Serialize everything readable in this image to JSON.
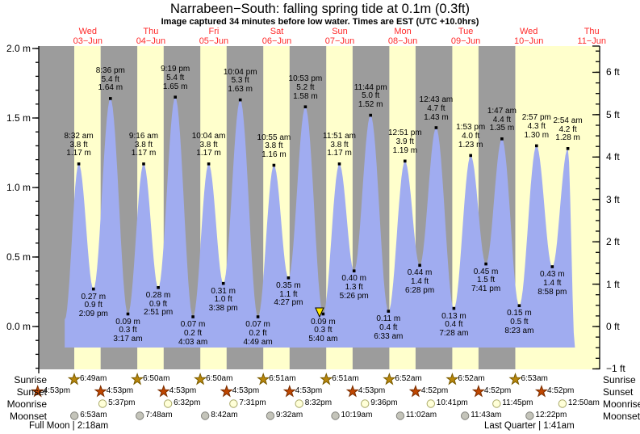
{
  "title": "Narrabeen−South: falling  spring tide at 0.1m (0.3ft)",
  "subtitle": "Image captured 34 minutes before low water. Times are EST (UTC +10.0hrs)",
  "colors": {
    "night_band": "#9C9C9C",
    "day_band": "#FFFFCC",
    "tide_fill": "#A0ACF0",
    "date_label_red": "#FF2A2A",
    "current_marker_yellow": "#FFE800",
    "sunrise_star": "#B8860B",
    "sunset_star": "#BF4600",
    "moonrise_circle": "#FFFFD8",
    "moonrise_circle_edge": "#A8A868",
    "moonset_circle": "#C4C4BA",
    "moonset_circle_edge": "#80807A"
  },
  "chart_data": {
    "type": "area",
    "title": "Narrabeen−South: falling  spring tide at 0.1m (0.3ft)",
    "x_axis_days": [
      {
        "weekday": "Wed",
        "date": "03−Jun"
      },
      {
        "weekday": "Thu",
        "date": "04−Jun"
      },
      {
        "weekday": "Fri",
        "date": "05−Jun"
      },
      {
        "weekday": "Sat",
        "date": "06−Jun"
      },
      {
        "weekday": "Sun",
        "date": "07−Jun"
      },
      {
        "weekday": "Mon",
        "date": "08−Jun"
      },
      {
        "weekday": "Tue",
        "date": "09−Jun"
      },
      {
        "weekday": "Wed",
        "date": "10−Jun"
      },
      {
        "weekday": "Thu",
        "date": "11−Jun"
      }
    ],
    "y_axis_left": {
      "unit": "m",
      "range": [
        -0.3,
        2.0
      ],
      "ticks": [
        {
          "label": "2.0 m",
          "value": 2.0
        },
        {
          "label": "1.5 m",
          "value": 1.5
        },
        {
          "label": "1.0 m",
          "value": 1.0
        },
        {
          "label": "0.5 m",
          "value": 0.5
        },
        {
          "label": "0.0 m",
          "value": 0.0
        }
      ]
    },
    "y_axis_right": {
      "unit": "ft",
      "range": [
        -1,
        6.5
      ],
      "ticks": [
        {
          "label": "6 ft",
          "value": 6
        },
        {
          "label": "5 ft",
          "value": 5
        },
        {
          "label": "4 ft",
          "value": 4
        },
        {
          "label": "3 ft",
          "value": 3
        },
        {
          "label": "2 ft",
          "value": 2
        },
        {
          "label": "1 ft",
          "value": 1
        },
        {
          "label": "0 ft",
          "value": 0
        },
        {
          "label": "−1 ft",
          "value": -1
        }
      ]
    },
    "tides": [
      {
        "day": 0,
        "time": "8:32 am",
        "height_ft": 3.8,
        "height_m": 1.17,
        "kind": "high"
      },
      {
        "day": 0,
        "time": "2:09 pm",
        "height_ft": 0.9,
        "height_m": 0.27,
        "kind": "low"
      },
      {
        "day": 0,
        "time": "8:36 pm",
        "height_ft": 5.4,
        "height_m": 1.64,
        "kind": "high"
      },
      {
        "day": 1,
        "time": "3:17 am",
        "height_ft": 0.3,
        "height_m": 0.09,
        "kind": "low"
      },
      {
        "day": 1,
        "time": "9:16 am",
        "height_ft": 3.8,
        "height_m": 1.17,
        "kind": "high"
      },
      {
        "day": 1,
        "time": "2:51 pm",
        "height_ft": 0.9,
        "height_m": 0.28,
        "kind": "low"
      },
      {
        "day": 1,
        "time": "9:19 pm",
        "height_ft": 5.4,
        "height_m": 1.65,
        "kind": "high"
      },
      {
        "day": 2,
        "time": "4:03 am",
        "height_ft": 0.2,
        "height_m": 0.07,
        "kind": "low"
      },
      {
        "day": 2,
        "time": "10:04 am",
        "height_ft": 3.8,
        "height_m": 1.17,
        "kind": "high"
      },
      {
        "day": 2,
        "time": "3:38 pm",
        "height_ft": 1.0,
        "height_m": 0.31,
        "kind": "low"
      },
      {
        "day": 2,
        "time": "10:04 pm",
        "height_ft": 5.3,
        "height_m": 1.63,
        "kind": "high"
      },
      {
        "day": 3,
        "time": "4:49 am",
        "height_ft": 0.2,
        "height_m": 0.07,
        "kind": "low"
      },
      {
        "day": 3,
        "time": "10:55 am",
        "height_ft": 3.8,
        "height_m": 1.16,
        "kind": "high"
      },
      {
        "day": 3,
        "time": "4:27 pm",
        "height_ft": 1.1,
        "height_m": 0.35,
        "kind": "low"
      },
      {
        "day": 3,
        "time": "10:53 pm",
        "height_ft": 5.2,
        "height_m": 1.58,
        "kind": "high"
      },
      {
        "day": 4,
        "time": "5:40 am",
        "height_ft": 0.3,
        "height_m": 0.09,
        "kind": "low",
        "current": true
      },
      {
        "day": 4,
        "time": "11:51 am",
        "height_ft": 3.8,
        "height_m": 1.17,
        "kind": "high"
      },
      {
        "day": 4,
        "time": "5:26 pm",
        "height_ft": 1.3,
        "height_m": 0.4,
        "kind": "low"
      },
      {
        "day": 4,
        "time": "11:44 pm",
        "height_ft": 5.0,
        "height_m": 1.52,
        "kind": "high"
      },
      {
        "day": 5,
        "time": "6:33 am",
        "height_ft": 0.4,
        "height_m": 0.11,
        "kind": "low"
      },
      {
        "day": 5,
        "time": "12:51 pm",
        "height_ft": 3.9,
        "height_m": 1.19,
        "kind": "high"
      },
      {
        "day": 5,
        "time": "6:28 pm",
        "height_ft": 1.4,
        "height_m": 0.44,
        "kind": "low"
      },
      {
        "day": 6,
        "time": "12:43 am",
        "height_ft": 4.7,
        "height_m": 1.43,
        "kind": "high"
      },
      {
        "day": 6,
        "time": "7:28 am",
        "height_ft": 0.4,
        "height_m": 0.13,
        "kind": "low"
      },
      {
        "day": 6,
        "time": "1:53 pm",
        "height_ft": 4.0,
        "height_m": 1.23,
        "kind": "high"
      },
      {
        "day": 6,
        "time": "7:41 pm",
        "height_ft": 1.5,
        "height_m": 0.45,
        "kind": "low"
      },
      {
        "day": 7,
        "time": "1:47 am",
        "height_ft": 4.4,
        "height_m": 1.35,
        "kind": "high"
      },
      {
        "day": 7,
        "time": "8:23 am",
        "height_ft": 0.5,
        "height_m": 0.15,
        "kind": "low"
      },
      {
        "day": 7,
        "time": "2:57 pm",
        "height_ft": 4.3,
        "height_m": 1.3,
        "kind": "high"
      },
      {
        "day": 7,
        "time": "8:58 pm",
        "height_ft": 1.4,
        "height_m": 0.43,
        "kind": "low"
      },
      {
        "day": 8,
        "time": "2:54 am",
        "height_ft": 4.2,
        "height_m": 1.28,
        "kind": "high"
      }
    ],
    "current_position": {
      "day": 4,
      "at_tide_time": "5:40 am",
      "state": "falling",
      "note": "34 minutes before low water"
    }
  },
  "astro": {
    "rows": [
      {
        "label": "Sunrise",
        "icon": "sunrise-star-icon",
        "entries": [
          {
            "day": 0,
            "time": "6:49am"
          },
          {
            "day": 1,
            "time": "6:50am"
          },
          {
            "day": 2,
            "time": "6:50am"
          },
          {
            "day": 3,
            "time": "6:51am"
          },
          {
            "day": 4,
            "time": "6:51am"
          },
          {
            "day": 5,
            "time": "6:52am"
          },
          {
            "day": 6,
            "time": "6:52am"
          },
          {
            "day": 7,
            "time": "6:53am"
          }
        ]
      },
      {
        "label": "Sunset",
        "icon": "sunset-star-icon",
        "entries": [
          {
            "day": -1,
            "time": "4:53pm"
          },
          {
            "day": 0,
            "time": "4:53pm"
          },
          {
            "day": 1,
            "time": "4:53pm"
          },
          {
            "day": 2,
            "time": "4:53pm"
          },
          {
            "day": 3,
            "time": "4:53pm"
          },
          {
            "day": 4,
            "time": "4:53pm"
          },
          {
            "day": 5,
            "time": "4:52pm"
          },
          {
            "day": 6,
            "time": "4:52pm"
          },
          {
            "day": 7,
            "time": "4:52pm"
          }
        ]
      },
      {
        "label": "Moonrise",
        "icon": "moonrise-circle-icon",
        "entries": [
          {
            "day": 0,
            "time": "5:37pm"
          },
          {
            "day": 1,
            "time": "6:32pm"
          },
          {
            "day": 2,
            "time": "7:31pm"
          },
          {
            "day": 3,
            "time": "8:32pm"
          },
          {
            "day": 4,
            "time": "9:36pm"
          },
          {
            "day": 5,
            "time": "10:41pm"
          },
          {
            "day": 6,
            "time": "11:45pm"
          },
          {
            "day": 8,
            "time": "12:50am"
          }
        ]
      },
      {
        "label": "Moonset",
        "icon": "moonset-circle-icon",
        "entries": [
          {
            "day": 0,
            "time": "6:53am"
          },
          {
            "day": 1,
            "time": "7:48am"
          },
          {
            "day": 2,
            "time": "8:42am"
          },
          {
            "day": 3,
            "time": "9:32am"
          },
          {
            "day": 4,
            "time": "10:19am"
          },
          {
            "day": 5,
            "time": "11:02am"
          },
          {
            "day": 6,
            "time": "11:43am"
          },
          {
            "day": 7,
            "time": "12:22pm"
          }
        ]
      }
    ],
    "notes": [
      {
        "text": "Full Moon | 2:18am"
      },
      {
        "text": "Last Quarter | 1:41am"
      }
    ]
  }
}
